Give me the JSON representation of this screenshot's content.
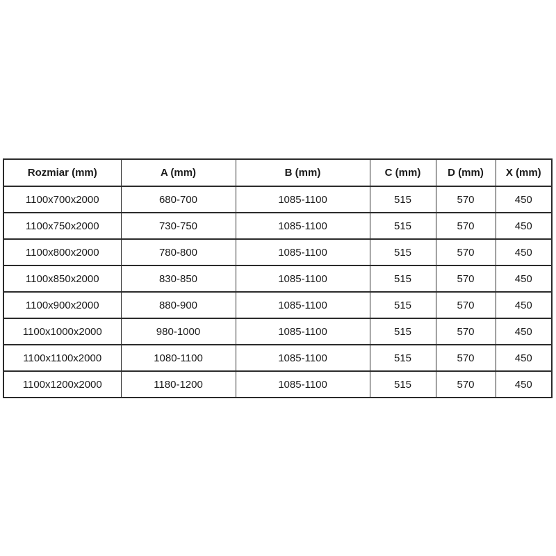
{
  "colors": {
    "background": "#ffffff",
    "border": "#2b2b2b",
    "text": "#1a1a1a"
  },
  "table": {
    "columns": [
      "Rozmiar (mm)",
      "A (mm)",
      "B (mm)",
      "C (mm)",
      "D (mm)",
      "X (mm)"
    ],
    "rows": [
      [
        "1100x700x2000",
        "680-700",
        "1085-1100",
        "515",
        "570",
        "450"
      ],
      [
        "1100x750x2000",
        "730-750",
        "1085-1100",
        "515",
        "570",
        "450"
      ],
      [
        "1100x800x2000",
        "780-800",
        "1085-1100",
        "515",
        "570",
        "450"
      ],
      [
        "1100x850x2000",
        "830-850",
        "1085-1100",
        "515",
        "570",
        "450"
      ],
      [
        "1100x900x2000",
        "880-900",
        "1085-1100",
        "515",
        "570",
        "450"
      ],
      [
        "1100x1000x2000",
        "980-1000",
        "1085-1100",
        "515",
        "570",
        "450"
      ],
      [
        "1100x1100x2000",
        "1080-1100",
        "1085-1100",
        "515",
        "570",
        "450"
      ],
      [
        "1100x1200x2000",
        "1180-1200",
        "1085-1100",
        "515",
        "570",
        "450"
      ]
    ]
  }
}
